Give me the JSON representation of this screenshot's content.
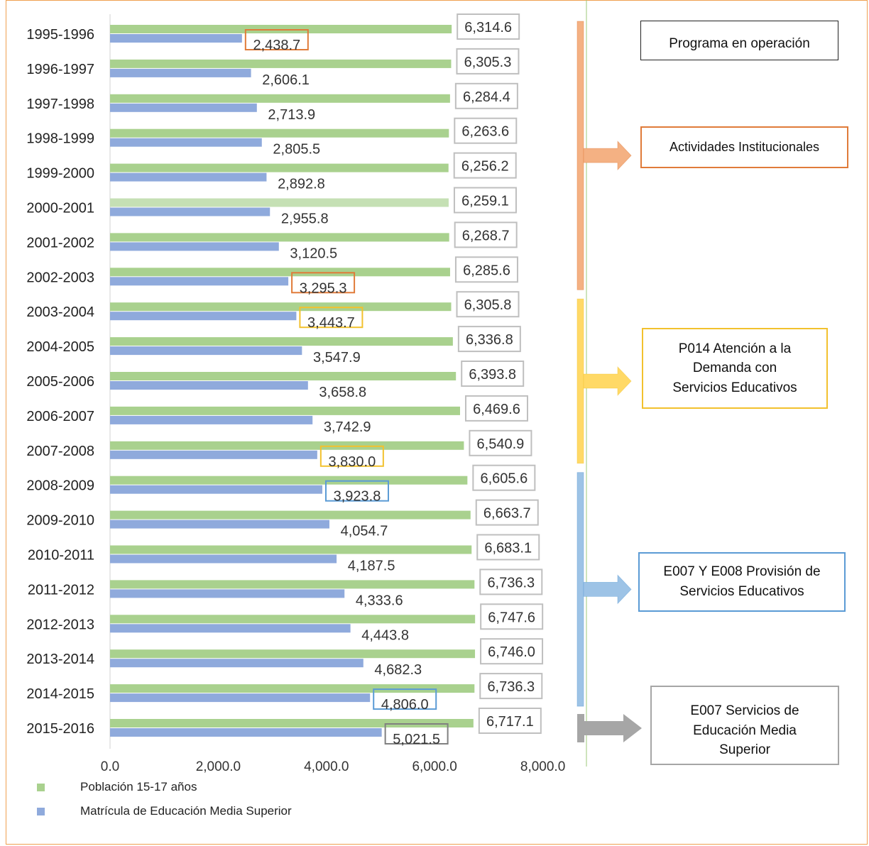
{
  "chart_data": {
    "type": "bar",
    "orientation": "horizontal",
    "categories": [
      "1995-1996",
      "1996-1997",
      "1997-1998",
      "1998-1999",
      "1999-2000",
      "2000-2001",
      "2001-2002",
      "2002-2003",
      "2003-2004",
      "2004-2005",
      "2005-2006",
      "2006-2007",
      "2007-2008",
      "2008-2009",
      "2009-2010",
      "2010-2011",
      "2011-2012",
      "2012-2013",
      "2013-2014",
      "2014-2015",
      "2015-2016"
    ],
    "series": [
      {
        "name": "Población 15-17 años",
        "color": "#a9d18e",
        "values": [
          6314.6,
          6305.3,
          6284.4,
          6263.6,
          6256.2,
          6259.1,
          6268.7,
          6285.6,
          6305.8,
          6336.8,
          6393.8,
          6469.6,
          6540.9,
          6605.6,
          6663.7,
          6683.1,
          6736.3,
          6747.6,
          6746.0,
          6736.3,
          6717.1
        ],
        "labels": [
          "6,314.6",
          "6,305.3",
          "6,284.4",
          "6,263.6",
          "6,256.2",
          "6,259.1",
          "6,268.7",
          "6,285.6",
          "6,305.8",
          "6,336.8",
          "6,393.8",
          "6,469.6",
          "6,540.9",
          "6,605.6",
          "6,663.7",
          "6,683.1",
          "6,736.3",
          "6,747.6",
          "6,746.0",
          "6,736.3",
          "6,717.1"
        ]
      },
      {
        "name": "Matrícula de Educación Media Superior",
        "color": "#8faadc",
        "values": [
          2438.7,
          2606.1,
          2713.9,
          2805.5,
          2892.8,
          2955.8,
          3120.5,
          3295.3,
          3443.7,
          3547.9,
          3658.8,
          3742.9,
          3830.0,
          3923.8,
          4054.7,
          4187.5,
          4333.6,
          4443.8,
          4682.3,
          4806.0,
          5021.5
        ],
        "labels": [
          "2,438.7",
          "2,606.1",
          "2,713.9",
          "2,805.5",
          "2,892.8",
          "2,955.8",
          "3,120.5",
          "3,295.3",
          "3,443.7",
          "3,547.9",
          "3,658.8",
          "3,742.9",
          "3,830.0",
          "3,923.8",
          "4,054.7",
          "4,187.5",
          "4,333.6",
          "4,443.8",
          "4,682.3",
          "4,806.0",
          "5,021.5"
        ]
      }
    ],
    "xlim": [
      0,
      8000
    ],
    "xticks": [
      0,
      2000,
      4000,
      6000,
      8000
    ],
    "xtick_labels": [
      "0.0",
      "2,000.0",
      "4,000.0",
      "6,000.0",
      "8,000.0"
    ],
    "highlighted_labels": [
      {
        "index": 0,
        "color": "#e07b39"
      },
      {
        "index": 7,
        "color": "#e07b39"
      },
      {
        "index": 8,
        "color": "#f2c12e"
      },
      {
        "index": 12,
        "color": "#f2c12e"
      },
      {
        "index": 13,
        "color": "#5b9bd5"
      },
      {
        "index": 19,
        "color": "#5b9bd5"
      },
      {
        "index": 20,
        "color": "#808080"
      }
    ],
    "legend_position": "bottom-left"
  },
  "programs": {
    "header": "Programa en operación",
    "items": [
      {
        "label": "Actividades Institucionales",
        "color": "#e07b39",
        "bracket_color": "#f4b183",
        "from": "1995-1996",
        "to": "2002-2003"
      },
      {
        "label": "P014 Atención a la Demanda con Servicios Educativos",
        "lines": [
          "P014 Atención a la",
          "Demanda con",
          "Servicios Educativos"
        ],
        "color": "#f2c12e",
        "bracket_color": "#ffd966",
        "from": "2003-2004",
        "to": "2007-2008"
      },
      {
        "label": "E007 Y E008 Provisión de Servicios Educativos",
        "lines": [
          "E007 Y E008 Provisión de",
          "Servicios Educativos"
        ],
        "color": "#5b9bd5",
        "bracket_color": "#9dc3e6",
        "from": "2008-2009",
        "to": "2014-2015"
      },
      {
        "label": "E007 Servicios de Educación Media Superior",
        "lines": [
          "E007 Servicios de",
          "Educación Media",
          "Superior"
        ],
        "color": "#808080",
        "bracket_color": "#a6a6a6",
        "from": "2015-2016",
        "to": "2015-2016"
      }
    ]
  }
}
